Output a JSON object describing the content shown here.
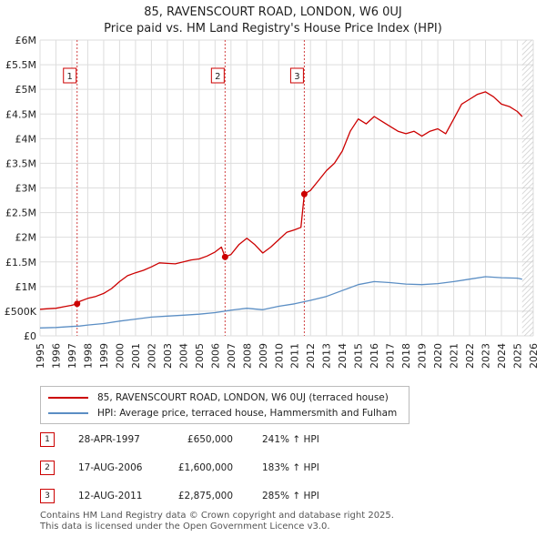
{
  "title_line1": "85, RAVENSCOURT ROAD, LONDON, W6 0UJ",
  "title_line2": "Price paid vs. HM Land Registry's House Price Index (HPI)",
  "colors": {
    "property": "#cc0000",
    "hpi": "#5b8ec4",
    "grid": "#dddddd",
    "marker_box": "#cc0000"
  },
  "chart_data": {
    "type": "line",
    "title": "Price paid vs. HM Land Registry's House Price Index (HPI)",
    "xlabel": "",
    "ylabel": "",
    "xlim": [
      1995,
      2026
    ],
    "ylim": [
      0,
      6000000
    ],
    "y_ticks": [
      {
        "value": 0,
        "label": "£0"
      },
      {
        "value": 500000,
        "label": "£500K"
      },
      {
        "value": 1000000,
        "label": "£1M"
      },
      {
        "value": 1500000,
        "label": "£1.5M"
      },
      {
        "value": 2000000,
        "label": "£2M"
      },
      {
        "value": 2500000,
        "label": "£2.5M"
      },
      {
        "value": 3000000,
        "label": "£3M"
      },
      {
        "value": 3500000,
        "label": "£3.5M"
      },
      {
        "value": 4000000,
        "label": "£4M"
      },
      {
        "value": 4500000,
        "label": "£4.5M"
      },
      {
        "value": 5000000,
        "label": "£5M"
      },
      {
        "value": 5500000,
        "label": "£5.5M"
      },
      {
        "value": 6000000,
        "label": "£6M"
      }
    ],
    "x_ticks": [
      "1995",
      "1996",
      "1997",
      "1998",
      "1999",
      "2000",
      "2001",
      "2002",
      "2003",
      "2004",
      "2005",
      "2006",
      "2007",
      "2008",
      "2009",
      "2010",
      "2011",
      "2012",
      "2013",
      "2014",
      "2015",
      "2016",
      "2017",
      "2018",
      "2019",
      "2020",
      "2021",
      "2022",
      "2023",
      "2024",
      "2025",
      "2026"
    ],
    "series": [
      {
        "name": "85, RAVENSCOURT ROAD, LONDON, W6 0UJ (terraced house)",
        "color": "#cc0000",
        "points": [
          [
            1995.0,
            540000
          ],
          [
            1995.5,
            550000
          ],
          [
            1996.0,
            560000
          ],
          [
            1996.5,
            590000
          ],
          [
            1997.0,
            620000
          ],
          [
            1997.33,
            650000
          ],
          [
            1997.5,
            700000
          ],
          [
            1998.0,
            760000
          ],
          [
            1998.5,
            800000
          ],
          [
            1999.0,
            860000
          ],
          [
            1999.5,
            960000
          ],
          [
            2000.0,
            1100000
          ],
          [
            2000.5,
            1220000
          ],
          [
            2001.0,
            1280000
          ],
          [
            2001.5,
            1330000
          ],
          [
            2002.0,
            1400000
          ],
          [
            2002.5,
            1480000
          ],
          [
            2003.0,
            1470000
          ],
          [
            2003.5,
            1460000
          ],
          [
            2004.0,
            1500000
          ],
          [
            2004.5,
            1540000
          ],
          [
            2005.0,
            1560000
          ],
          [
            2005.5,
            1620000
          ],
          [
            2006.0,
            1700000
          ],
          [
            2006.4,
            1800000
          ],
          [
            2006.63,
            1600000
          ],
          [
            2007.0,
            1650000
          ],
          [
            2007.5,
            1850000
          ],
          [
            2008.0,
            1980000
          ],
          [
            2008.5,
            1850000
          ],
          [
            2009.0,
            1680000
          ],
          [
            2009.5,
            1800000
          ],
          [
            2010.0,
            1950000
          ],
          [
            2010.5,
            2100000
          ],
          [
            2011.0,
            2150000
          ],
          [
            2011.4,
            2200000
          ],
          [
            2011.61,
            2875000
          ],
          [
            2012.0,
            2950000
          ],
          [
            2012.5,
            3150000
          ],
          [
            2013.0,
            3350000
          ],
          [
            2013.5,
            3500000
          ],
          [
            2014.0,
            3750000
          ],
          [
            2014.5,
            4150000
          ],
          [
            2015.0,
            4400000
          ],
          [
            2015.5,
            4300000
          ],
          [
            2016.0,
            4450000
          ],
          [
            2016.5,
            4350000
          ],
          [
            2017.0,
            4250000
          ],
          [
            2017.5,
            4150000
          ],
          [
            2018.0,
            4100000
          ],
          [
            2018.5,
            4150000
          ],
          [
            2019.0,
            4050000
          ],
          [
            2019.5,
            4150000
          ],
          [
            2020.0,
            4200000
          ],
          [
            2020.5,
            4100000
          ],
          [
            2021.0,
            4400000
          ],
          [
            2021.5,
            4700000
          ],
          [
            2022.0,
            4800000
          ],
          [
            2022.5,
            4900000
          ],
          [
            2023.0,
            4950000
          ],
          [
            2023.5,
            4850000
          ],
          [
            2024.0,
            4700000
          ],
          [
            2024.5,
            4650000
          ],
          [
            2025.0,
            4550000
          ],
          [
            2025.3,
            4450000
          ]
        ]
      },
      {
        "name": "HPI: Average price, terraced house, Hammersmith and Fulham",
        "color": "#5b8ec4",
        "points": [
          [
            1995.0,
            160000
          ],
          [
            1996.0,
            170000
          ],
          [
            1997.0,
            190000
          ],
          [
            1997.5,
            200000
          ],
          [
            1998.0,
            220000
          ],
          [
            1999.0,
            250000
          ],
          [
            2000.0,
            300000
          ],
          [
            2001.0,
            340000
          ],
          [
            2002.0,
            380000
          ],
          [
            2003.0,
            400000
          ],
          [
            2004.0,
            420000
          ],
          [
            2005.0,
            440000
          ],
          [
            2006.0,
            470000
          ],
          [
            2007.0,
            520000
          ],
          [
            2008.0,
            560000
          ],
          [
            2009.0,
            530000
          ],
          [
            2010.0,
            600000
          ],
          [
            2011.0,
            650000
          ],
          [
            2012.0,
            720000
          ],
          [
            2013.0,
            800000
          ],
          [
            2014.0,
            920000
          ],
          [
            2015.0,
            1040000
          ],
          [
            2016.0,
            1100000
          ],
          [
            2017.0,
            1080000
          ],
          [
            2018.0,
            1050000
          ],
          [
            2019.0,
            1040000
          ],
          [
            2020.0,
            1060000
          ],
          [
            2021.0,
            1100000
          ],
          [
            2022.0,
            1150000
          ],
          [
            2023.0,
            1200000
          ],
          [
            2024.0,
            1180000
          ],
          [
            2025.0,
            1170000
          ],
          [
            2025.3,
            1150000
          ]
        ]
      }
    ],
    "sales": [
      {
        "id": "1",
        "x": 1997.33,
        "y": 650000
      },
      {
        "id": "2",
        "x": 2006.63,
        "y": 1600000
      },
      {
        "id": "3",
        "x": 2011.61,
        "y": 2875000
      }
    ],
    "hatched_after": 2025.3
  },
  "legend": {
    "property": "85, RAVENSCOURT ROAD, LONDON, W6 0UJ (terraced house)",
    "hpi": "HPI: Average price, terraced house, Hammersmith and Fulham"
  },
  "sales_table": [
    {
      "num": "1",
      "date": "28-APR-1997",
      "price": "£650,000",
      "pct": "241% ↑ HPI"
    },
    {
      "num": "2",
      "date": "17-AUG-2006",
      "price": "£1,600,000",
      "pct": "183% ↑ HPI"
    },
    {
      "num": "3",
      "date": "12-AUG-2011",
      "price": "£2,875,000",
      "pct": "285% ↑ HPI"
    }
  ],
  "footer_line1": "Contains HM Land Registry data © Crown copyright and database right 2025.",
  "footer_line2": "This data is licensed under the Open Government Licence v3.0."
}
